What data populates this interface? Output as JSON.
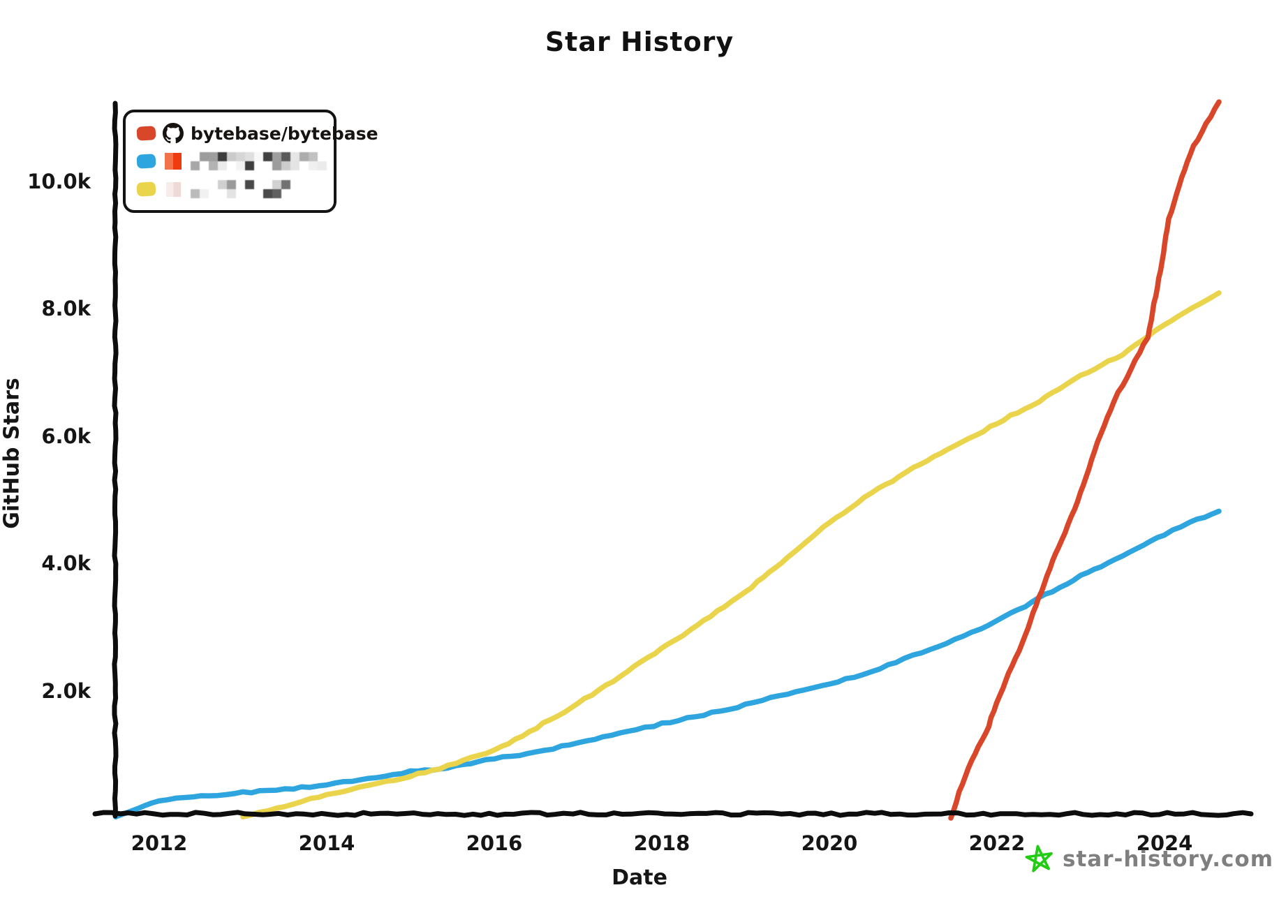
{
  "title": "Star History",
  "watermark": {
    "text": "star-history.com",
    "star_color": "#23cc14",
    "text_color": "#7f7f7f"
  },
  "legend": [
    {
      "label": "bytebase/bytebase",
      "swatch_color": "#d9472b",
      "icon": "github-octocat",
      "redacted": false
    },
    {
      "label": "",
      "swatch_color": "#2ea5de",
      "icon": "blurred-avatar-orange",
      "avatar_colors": [
        "#f2724a",
        "#ee3c10"
      ],
      "redacted": true,
      "blur_cols": 16,
      "blur_rows": 2
    },
    {
      "label": "",
      "swatch_color": "#ead44b",
      "icon": "blurred-avatar-pink",
      "avatar_colors": [
        "#f7ece9",
        "#eed9d4"
      ],
      "redacted": true,
      "blur_cols": 11,
      "blur_rows": 2
    }
  ],
  "chart_data": {
    "type": "line",
    "title": "Star History",
    "xlabel": "Date",
    "ylabel": "GitHub Stars",
    "grid": false,
    "legend_position": "top-left",
    "xlim": [
      2011.48,
      2025.05
    ],
    "ylim": [
      0,
      11400
    ],
    "x_ticks": [
      {
        "value": 2012,
        "label": "2012"
      },
      {
        "value": 2014,
        "label": "2014"
      },
      {
        "value": 2016,
        "label": "2016"
      },
      {
        "value": 2018,
        "label": "2018"
      },
      {
        "value": 2020,
        "label": "2020"
      },
      {
        "value": 2022,
        "label": "2022"
      },
      {
        "value": 2024,
        "label": "2024"
      }
    ],
    "y_ticks": [
      {
        "value": 2000,
        "label": "2.0k"
      },
      {
        "value": 4000,
        "label": "4.0k"
      },
      {
        "value": 6000,
        "label": "6.0k"
      },
      {
        "value": 8000,
        "label": "8.0k"
      },
      {
        "value": 10000,
        "label": "10.0k"
      }
    ],
    "series": [
      {
        "name": "redacted-blue-repo",
        "color": "#2ea5de",
        "points": [
          [
            2011.48,
            20
          ],
          [
            2012,
            280
          ],
          [
            2012.5,
            340
          ],
          [
            2013,
            400
          ],
          [
            2013.5,
            450
          ],
          [
            2014,
            520
          ],
          [
            2014.5,
            620
          ],
          [
            2015,
            730
          ],
          [
            2015.35,
            775
          ],
          [
            2016,
            930
          ],
          [
            2016.5,
            1040
          ],
          [
            2017,
            1180
          ],
          [
            2017.5,
            1330
          ],
          [
            2018,
            1480
          ],
          [
            2018.5,
            1620
          ],
          [
            2019,
            1780
          ],
          [
            2019.5,
            1950
          ],
          [
            2020,
            2100
          ],
          [
            2020.5,
            2300
          ],
          [
            2021,
            2550
          ],
          [
            2021.5,
            2800
          ],
          [
            2022,
            3100
          ],
          [
            2022.5,
            3450
          ],
          [
            2023,
            3800
          ],
          [
            2023.5,
            4120
          ],
          [
            2024,
            4450
          ],
          [
            2024.3,
            4650
          ],
          [
            2024.65,
            4820
          ]
        ]
      },
      {
        "name": "redacted-yellow-repo",
        "color": "#ead44b",
        "points": [
          [
            2013,
            20
          ],
          [
            2013.5,
            180
          ],
          [
            2014,
            370
          ],
          [
            2014.5,
            510
          ],
          [
            2015,
            660
          ],
          [
            2015.35,
            780
          ],
          [
            2016,
            1060
          ],
          [
            2016.5,
            1420
          ],
          [
            2017,
            1800
          ],
          [
            2017.5,
            2220
          ],
          [
            2018,
            2660
          ],
          [
            2018.5,
            3100
          ],
          [
            2019,
            3550
          ],
          [
            2019.5,
            4100
          ],
          [
            2020,
            4650
          ],
          [
            2020.5,
            5100
          ],
          [
            2021,
            5500
          ],
          [
            2021.5,
            5850
          ],
          [
            2022,
            6200
          ],
          [
            2022.5,
            6550
          ],
          [
            2023,
            6950
          ],
          [
            2023.5,
            7280
          ],
          [
            2023.8,
            7560
          ],
          [
            2024,
            7750
          ],
          [
            2024.65,
            8250
          ]
        ]
      },
      {
        "name": "bytebase/bytebase",
        "color": "#d9472b",
        "points": [
          [
            2021.45,
            0
          ],
          [
            2021.55,
            400
          ],
          [
            2021.7,
            900
          ],
          [
            2021.9,
            1450
          ],
          [
            2022.1,
            2150
          ],
          [
            2022.3,
            2750
          ],
          [
            2022.5,
            3450
          ],
          [
            2022.7,
            4150
          ],
          [
            2022.85,
            4600
          ],
          [
            2023,
            5100
          ],
          [
            2023.2,
            5900
          ],
          [
            2023.4,
            6550
          ],
          [
            2023.6,
            7050
          ],
          [
            2023.8,
            7560
          ],
          [
            2023.95,
            8600
          ],
          [
            2024.05,
            9400
          ],
          [
            2024.2,
            10050
          ],
          [
            2024.35,
            10550
          ],
          [
            2024.5,
            10900
          ],
          [
            2024.65,
            11250
          ]
        ]
      }
    ]
  }
}
